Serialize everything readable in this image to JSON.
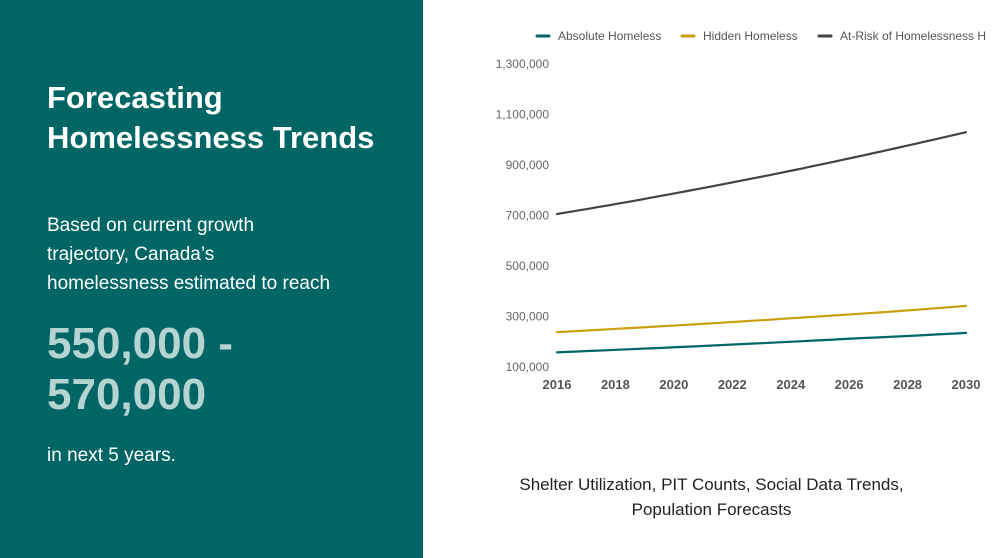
{
  "panel": {
    "title_line1": "Forecasting",
    "title_line2": "Homelessness Trends",
    "lead_line1": "Based on current growth",
    "lead_line2": "trajectory, Canada’s",
    "lead_line3": "homelessness estimated to reach",
    "range_line1": "550,000 -",
    "range_line2": "570,000",
    "tail": "in next 5 years."
  },
  "colors": {
    "panel_bg": "#006565",
    "range_text": "#b5d3d0",
    "absolute": "#006666",
    "hidden": "#c9a00d",
    "at_risk": "#444444"
  },
  "chart_data": {
    "type": "line",
    "title": "",
    "xlabel": "",
    "ylabel": "",
    "x": [
      2016,
      2018,
      2020,
      2022,
      2024,
      2026,
      2028,
      2030
    ],
    "xticks": [
      "2016",
      "2018",
      "2020",
      "2022",
      "2024",
      "2026",
      "2028",
      "2030"
    ],
    "ylim": [
      100000,
      1300000
    ],
    "yticks": [
      "1,300,000",
      "1,100,000",
      "900,000",
      "700,000",
      "500,000",
      "300,000",
      "100,000"
    ],
    "grid": false,
    "legend_position": "top",
    "series": [
      {
        "name": "Absolute Homeless",
        "color": "#006666",
        "values": [
          158000,
          168000,
          178000,
          189000,
          200000,
          212000,
          223000,
          235000
        ]
      },
      {
        "name": "Hidden Homeless",
        "color": "#c9a00d",
        "values": [
          238000,
          251000,
          264000,
          278000,
          293000,
          308000,
          324000,
          342000
        ]
      },
      {
        "name": "At-Risk of Homelessness H",
        "color": "#444444",
        "values": [
          706000,
          745000,
          787000,
          831000,
          877000,
          926000,
          977000,
          1030000
        ]
      }
    ]
  },
  "caption": {
    "line1": "Shelter Utilization, PIT Counts, Social Data Trends,",
    "line2": "Population Forecasts"
  }
}
